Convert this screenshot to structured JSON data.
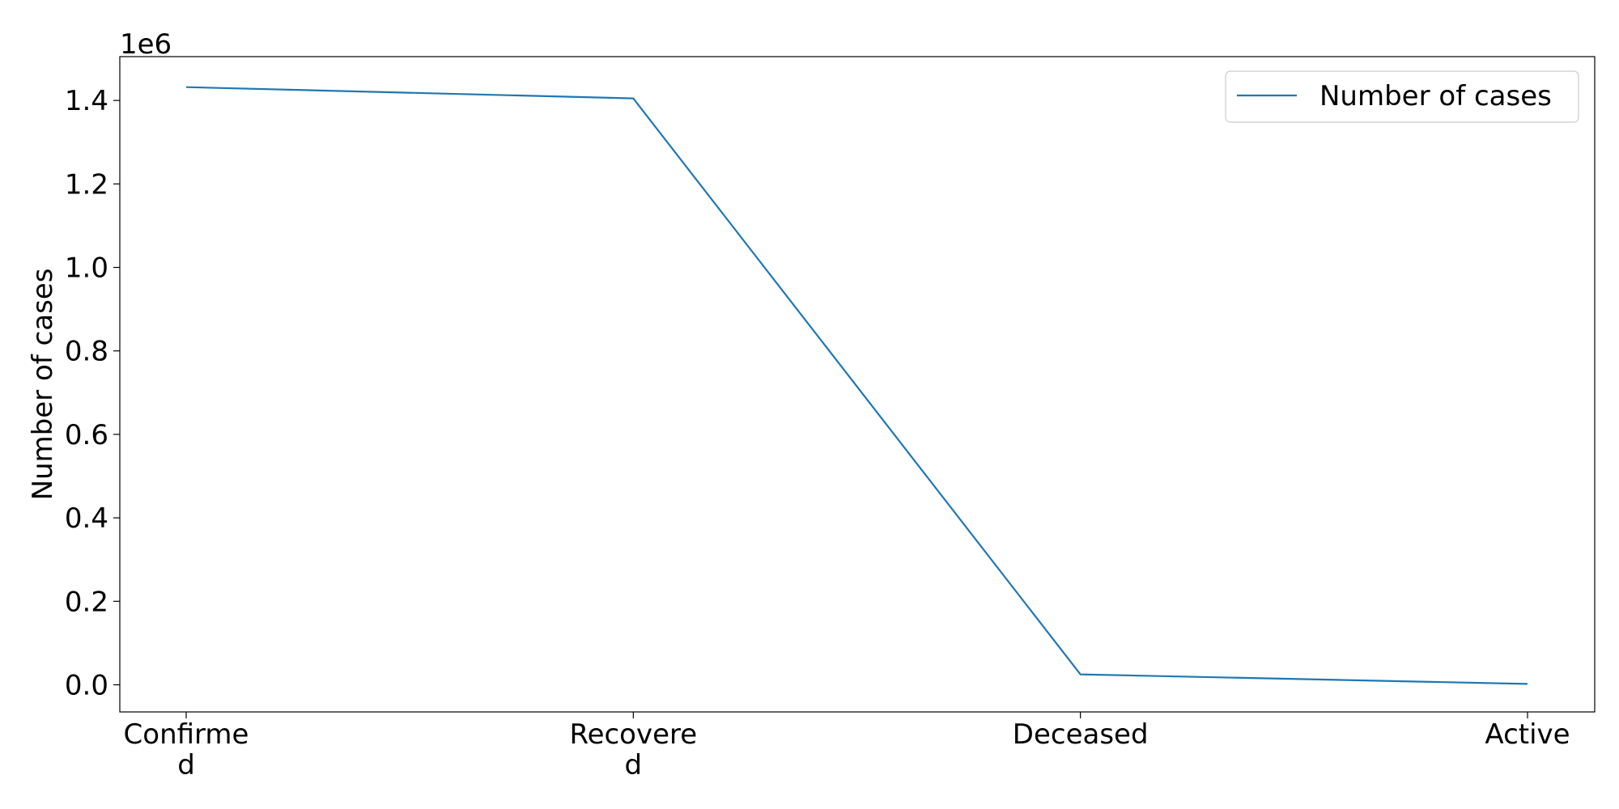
{
  "chart_data": {
    "type": "line",
    "categories": [
      "Confirmed",
      "Recovered",
      "Deceased",
      "Active"
    ],
    "category_labels": [
      [
        "Confirme",
        "d"
      ],
      [
        "Recovere",
        "d"
      ],
      [
        "Deceased"
      ],
      [
        "Active"
      ]
    ],
    "series": [
      {
        "name": "Number of cases",
        "values": [
          1432000,
          1405000,
          25000,
          2000
        ],
        "color": "#1f77b4"
      }
    ],
    "title": "",
    "xlabel": "",
    "ylabel": "Number of cases",
    "ylim": [
      -65000,
      1505000
    ],
    "yticks": [
      0.0,
      0.2,
      0.4,
      0.6,
      0.8,
      1.0,
      1.2,
      1.4
    ],
    "ytick_labels": [
      "0.0",
      "0.2",
      "0.4",
      "0.6",
      "0.8",
      "1.0",
      "1.2",
      "1.4"
    ],
    "y_offset_label": "1e6",
    "ytick_multiplier": 1000000,
    "grid": false,
    "legend_position": "top-right"
  }
}
